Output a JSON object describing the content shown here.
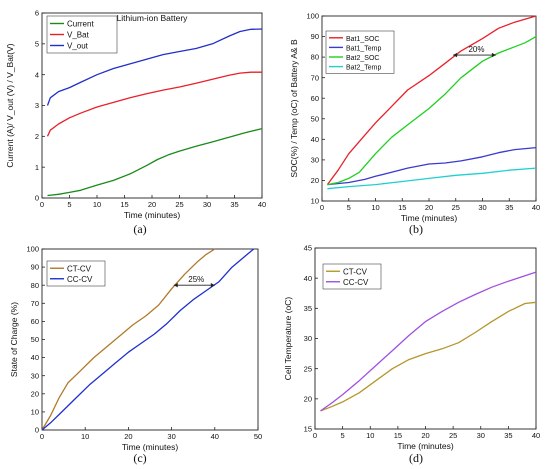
{
  "figure": {
    "panel_labels": [
      "(a)",
      "(b)",
      "(c)",
      "(d)"
    ]
  },
  "chart_data": [
    {
      "type": "line",
      "title": "Lithium-ion Battery",
      "xlabel": "Time (minutes)",
      "ylabel": "Current (A)/ V_out (V) / V_Bat(V)",
      "xlim": [
        0,
        40
      ],
      "ylim": [
        0,
        6
      ],
      "xticks": [
        0,
        5,
        10,
        15,
        20,
        25,
        30,
        35,
        40
      ],
      "yticks": [
        0,
        1,
        2,
        3,
        4,
        5,
        6
      ],
      "grid": false,
      "legend_position": "top-left",
      "series": [
        {
          "name": "Current",
          "color": "#1a8a1a",
          "x": [
            1,
            3,
            5,
            7,
            10,
            13,
            16,
            19,
            21,
            23,
            25,
            28,
            31,
            34,
            37,
            40
          ],
          "y": [
            0.08,
            0.12,
            0.18,
            0.25,
            0.42,
            0.57,
            0.78,
            1.05,
            1.25,
            1.4,
            1.52,
            1.68,
            1.82,
            1.97,
            2.12,
            2.25
          ]
        },
        {
          "name": "V_Bat",
          "color": "#e8202a",
          "x": [
            1,
            1.5,
            3,
            5,
            7,
            10,
            13,
            16,
            19,
            22,
            25,
            28,
            31,
            34,
            36,
            38,
            40
          ],
          "y": [
            2.0,
            2.2,
            2.4,
            2.6,
            2.75,
            2.95,
            3.1,
            3.25,
            3.38,
            3.5,
            3.6,
            3.72,
            3.85,
            3.98,
            4.05,
            4.08,
            4.08
          ]
        },
        {
          "name": "V_out",
          "color": "#2030c8",
          "x": [
            1,
            1.5,
            3,
            5,
            7,
            10,
            13,
            16,
            19,
            22,
            25,
            28,
            31,
            34,
            36,
            38,
            40
          ],
          "y": [
            3.0,
            3.25,
            3.45,
            3.58,
            3.75,
            4.0,
            4.2,
            4.35,
            4.5,
            4.65,
            4.75,
            4.85,
            5.0,
            5.25,
            5.4,
            5.47,
            5.48
          ]
        }
      ]
    },
    {
      "type": "line",
      "title": "",
      "xlabel": "Time (minutes)",
      "ylabel": "SOC(%) / Temp (oC) of Battery A& B",
      "xlim": [
        0,
        40
      ],
      "ylim": [
        10,
        100
      ],
      "xticks": [
        0,
        5,
        10,
        15,
        20,
        25,
        30,
        35,
        40
      ],
      "yticks": [
        10,
        20,
        30,
        40,
        50,
        60,
        70,
        80,
        90,
        100
      ],
      "grid": false,
      "legend_position": "top-left",
      "annotation": "20%",
      "annotation_span": [
        24.5,
        32.5
      ],
      "annotation_y": 81,
      "series": [
        {
          "name": "Bat1_SOC",
          "color": "#e8202a",
          "x": [
            1,
            3,
            5,
            8,
            10,
            13,
            16,
            20,
            23,
            26,
            30,
            33,
            36,
            40
          ],
          "y": [
            18,
            25,
            33,
            42,
            48,
            56,
            64,
            71,
            77,
            83,
            89,
            94,
            97,
            100
          ]
        },
        {
          "name": "Bat1_Temp",
          "color": "#3a3ad0",
          "x": [
            1,
            5,
            8,
            10,
            13,
            16,
            20,
            23,
            26,
            30,
            33,
            36,
            40
          ],
          "y": [
            18,
            19,
            20.5,
            22,
            24,
            26,
            28,
            28.5,
            29.5,
            31.5,
            33.5,
            35,
            36
          ]
        },
        {
          "name": "Bat2_SOC",
          "color": "#20d020",
          "x": [
            1,
            3,
            5,
            7,
            10,
            13,
            16,
            20,
            23,
            26,
            30,
            33,
            36,
            38,
            40
          ],
          "y": [
            18,
            19,
            21,
            24,
            33,
            41,
            47,
            55,
            62,
            70,
            78,
            82,
            85,
            87,
            90
          ]
        },
        {
          "name": "Bat2_Temp",
          "color": "#20d0d0",
          "x": [
            1,
            5,
            10,
            15,
            20,
            25,
            30,
            35,
            40
          ],
          "y": [
            16,
            17,
            18,
            19.5,
            21,
            22.5,
            23.5,
            25,
            26
          ]
        }
      ]
    },
    {
      "type": "line",
      "title": "",
      "xlabel": "Time (minutes)",
      "ylabel": "State of Charge (%)",
      "xlim": [
        0,
        50
      ],
      "ylim": [
        0,
        100
      ],
      "xticks": [
        0,
        10,
        20,
        30,
        40,
        50
      ],
      "yticks": [
        0,
        10,
        20,
        30,
        40,
        50,
        60,
        70,
        80,
        90,
        100
      ],
      "grid": false,
      "legend_position": "top-left",
      "annotation": "25%",
      "annotation_span": [
        30.5,
        40
      ],
      "annotation_y": 80,
      "series": [
        {
          "name": "CT-CV",
          "color": "#b07a2a",
          "x": [
            0,
            2,
            4,
            6,
            9,
            12,
            15,
            18,
            21,
            24,
            27,
            30,
            33,
            36,
            38,
            40
          ],
          "y": [
            0,
            8,
            18,
            26,
            33,
            40,
            46,
            52,
            58,
            63,
            69,
            78,
            86,
            93,
            97,
            100
          ]
        },
        {
          "name": "CC-CV",
          "color": "#2030d0",
          "x": [
            0,
            2,
            5,
            8,
            11,
            14,
            17,
            20,
            23,
            26,
            29,
            32,
            35,
            38,
            41,
            44,
            47,
            49
          ],
          "y": [
            0,
            4,
            11,
            18,
            25,
            31,
            37,
            43,
            48,
            53,
            59,
            66,
            72,
            77,
            82,
            90,
            96,
            100
          ]
        }
      ]
    },
    {
      "type": "line",
      "title": "",
      "xlabel": "Time (minutes)",
      "ylabel": "Cell Temperature (oC)",
      "xlim": [
        0,
        40
      ],
      "ylim": [
        15,
        45
      ],
      "xticks": [
        0,
        5,
        10,
        15,
        20,
        25,
        30,
        35,
        40
      ],
      "yticks": [
        15,
        20,
        25,
        30,
        35,
        40,
        45
      ],
      "grid": false,
      "legend_position": "top-left",
      "series": [
        {
          "name": "CT-CV",
          "color": "#b5962a",
          "x": [
            1,
            3,
            5,
            8,
            11,
            14,
            17,
            20,
            23,
            26,
            29,
            32,
            35,
            38,
            40
          ],
          "y": [
            18,
            18.7,
            19.5,
            21,
            23,
            25,
            26.5,
            27.5,
            28.3,
            29.3,
            31,
            32.8,
            34.5,
            35.8,
            36
          ]
        },
        {
          "name": "CC-CV",
          "color": "#a050e0",
          "x": [
            1,
            3,
            5,
            8,
            11,
            14,
            17,
            20,
            23,
            26,
            29,
            32,
            35,
            38,
            40
          ],
          "y": [
            18,
            19.3,
            20.7,
            23,
            25.5,
            28,
            30.5,
            32.8,
            34.5,
            36,
            37.3,
            38.5,
            39.5,
            40.4,
            41
          ]
        }
      ]
    }
  ]
}
